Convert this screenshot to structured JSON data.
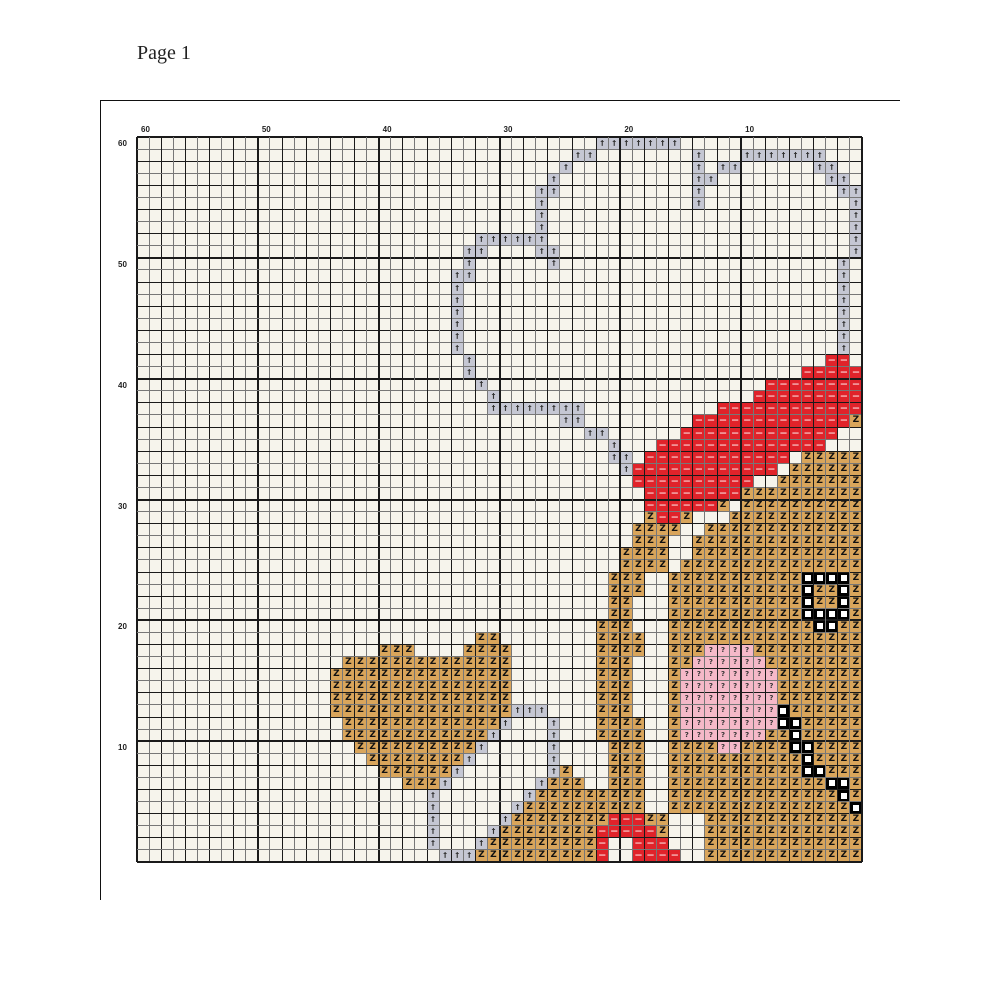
{
  "page": {
    "title": "Page 1"
  },
  "axes": {
    "top_labels": [
      "60",
      "50",
      "40",
      "30",
      "20",
      "10"
    ],
    "left_labels": [
      "60",
      "50",
      "40",
      "30",
      "20",
      "10"
    ]
  },
  "symbols": {
    "g": {
      "color": "#c5c7d3",
      "glyph": "†",
      "glyph_color": "#333333"
    },
    "r": {
      "color": "#e0232a",
      "glyph": "—",
      "glyph_color": "#ffffff"
    },
    "z": {
      "color": "#d9a55b",
      "glyph": "Z",
      "glyph_color": "#111111"
    },
    "p": {
      "color": "#f5b9c8",
      "glyph": "?",
      "glyph_color": "#333333"
    },
    "w": {
      "color": "#ffffff",
      "glyph": "",
      "glyph_color": "#000000"
    }
  },
  "pattern_rows": [
    [
      [
        "g",
        38,
        44
      ]
    ],
    [
      [
        "g",
        36,
        37
      ],
      [
        "g",
        46,
        46
      ],
      [
        "g",
        50,
        56
      ]
    ],
    [
      [
        "g",
        35,
        35
      ],
      [
        "g",
        46,
        46
      ],
      [
        "g",
        48,
        49
      ],
      [
        "g",
        56,
        57
      ]
    ],
    [
      [
        "g",
        34,
        34
      ],
      [
        "g",
        46,
        47
      ],
      [
        "g",
        57,
        58
      ]
    ],
    [
      [
        "g",
        33,
        34
      ],
      [
        "g",
        46,
        46
      ],
      [
        "g",
        58,
        59
      ]
    ],
    [
      [
        "g",
        33,
        33
      ],
      [
        "g",
        46,
        46
      ],
      [
        "g",
        59,
        59
      ]
    ],
    [
      [
        "g",
        33,
        33
      ],
      [
        "g",
        59,
        59
      ]
    ],
    [
      [
        "g",
        33,
        33
      ],
      [
        "g",
        59,
        59
      ]
    ],
    [
      [
        "g",
        28,
        33
      ],
      [
        "g",
        59,
        59
      ]
    ],
    [
      [
        "g",
        27,
        28
      ],
      [
        "g",
        33,
        34
      ],
      [
        "g",
        59,
        59
      ]
    ],
    [
      [
        "g",
        27,
        27
      ],
      [
        "g",
        34,
        34
      ],
      [
        "g",
        58,
        58
      ]
    ],
    [
      [
        "g",
        26,
        27
      ],
      [
        "g",
        58,
        58
      ]
    ],
    [
      [
        "g",
        26,
        26
      ],
      [
        "g",
        58,
        58
      ]
    ],
    [
      [
        "g",
        26,
        26
      ],
      [
        "g",
        58,
        58
      ]
    ],
    [
      [
        "g",
        26,
        26
      ],
      [
        "g",
        58,
        58
      ]
    ],
    [
      [
        "g",
        26,
        26
      ],
      [
        "g",
        58,
        58
      ]
    ],
    [
      [
        "g",
        26,
        26
      ],
      [
        "g",
        58,
        58
      ]
    ],
    [
      [
        "g",
        26,
        26
      ],
      [
        "g",
        58,
        58
      ]
    ],
    [
      [
        "g",
        27,
        27
      ],
      [
        "r",
        57,
        58
      ]
    ],
    [
      [
        "g",
        27,
        27
      ],
      [
        "r",
        55,
        59
      ]
    ],
    [
      [
        "g",
        28,
        28
      ],
      [
        "r",
        52,
        59
      ]
    ],
    [
      [
        "g",
        29,
        29
      ],
      [
        "r",
        51,
        59
      ]
    ],
    [
      [
        "g",
        29,
        36
      ],
      [
        "r",
        48,
        59
      ]
    ],
    [
      [
        "g",
        35,
        36
      ],
      [
        "r",
        46,
        58
      ],
      [
        "z",
        59,
        59
      ]
    ],
    [
      [
        "g",
        37,
        38
      ],
      [
        "r",
        45,
        57
      ]
    ],
    [
      [
        "g",
        39,
        39
      ],
      [
        "r",
        43,
        56
      ]
    ],
    [
      [
        "g",
        39,
        40
      ],
      [
        "r",
        42,
        53
      ],
      [
        "z",
        55,
        59
      ]
    ],
    [
      [
        "g",
        40,
        40
      ],
      [
        "r",
        41,
        52
      ],
      [
        "z",
        54,
        59
      ]
    ],
    [
      [
        "r",
        41,
        50
      ],
      [
        "z",
        53,
        59
      ]
    ],
    [
      [
        "r",
        42,
        49
      ],
      [
        "z",
        50,
        59
      ]
    ],
    [
      [
        "r",
        42,
        47
      ],
      [
        "z",
        48,
        48
      ],
      [
        "z",
        50,
        59
      ]
    ],
    [
      [
        "z",
        42,
        42
      ],
      [
        "r",
        43,
        44
      ],
      [
        "z",
        45,
        45
      ],
      [
        "z",
        49,
        59
      ]
    ],
    [
      [
        "z",
        41,
        44
      ],
      [
        "z",
        47,
        59
      ]
    ],
    [
      [
        "z",
        41,
        43
      ],
      [
        "z",
        46,
        59
      ]
    ],
    [
      [
        "z",
        40,
        43
      ],
      [
        "z",
        46,
        59
      ]
    ],
    [
      [
        "z",
        40,
        43
      ],
      [
        "z",
        45,
        59
      ]
    ],
    [
      [
        "z",
        39,
        41
      ],
      [
        "z",
        44,
        54
      ],
      [
        "w",
        55,
        58
      ],
      [
        "z",
        59,
        59
      ]
    ],
    [
      [
        "z",
        39,
        41
      ],
      [
        "z",
        44,
        54
      ],
      [
        "w",
        55,
        55
      ],
      [
        "z",
        56,
        57
      ],
      [
        "w",
        58,
        58
      ],
      [
        "z",
        59,
        59
      ]
    ],
    [
      [
        "z",
        39,
        40
      ],
      [
        "z",
        44,
        54
      ],
      [
        "w",
        55,
        55
      ],
      [
        "z",
        56,
        57
      ],
      [
        "w",
        58,
        58
      ],
      [
        "z",
        59,
        59
      ]
    ],
    [
      [
        "z",
        39,
        40
      ],
      [
        "z",
        44,
        54
      ],
      [
        "w",
        55,
        58
      ],
      [
        "z",
        59,
        59
      ]
    ],
    [
      [
        "z",
        38,
        40
      ],
      [
        "z",
        44,
        55
      ],
      [
        "w",
        56,
        57
      ],
      [
        "z",
        58,
        59
      ]
    ],
    [
      [
        "z",
        28,
        29
      ],
      [
        "z",
        38,
        41
      ],
      [
        "z",
        44,
        59
      ]
    ],
    [
      [
        "z",
        20,
        22
      ],
      [
        "z",
        27,
        30
      ],
      [
        "z",
        38,
        41
      ],
      [
        "z",
        44,
        46
      ],
      [
        "p",
        47,
        50
      ],
      [
        "z",
        51,
        59
      ]
    ],
    [
      [
        "z",
        17,
        30
      ],
      [
        "z",
        38,
        40
      ],
      [
        "z",
        44,
        45
      ],
      [
        "p",
        46,
        51
      ],
      [
        "z",
        52,
        59
      ]
    ],
    [
      [
        "z",
        16,
        30
      ],
      [
        "z",
        38,
        40
      ],
      [
        "z",
        44,
        44
      ],
      [
        "p",
        45,
        52
      ],
      [
        "z",
        53,
        59
      ]
    ],
    [
      [
        "z",
        16,
        30
      ],
      [
        "z",
        38,
        40
      ],
      [
        "z",
        44,
        44
      ],
      [
        "p",
        45,
        52
      ],
      [
        "z",
        53,
        59
      ]
    ],
    [
      [
        "z",
        16,
        30
      ],
      [
        "z",
        38,
        40
      ],
      [
        "z",
        44,
        44
      ],
      [
        "p",
        45,
        52
      ],
      [
        "z",
        53,
        59
      ]
    ],
    [
      [
        "z",
        16,
        30
      ],
      [
        "g",
        31,
        33
      ],
      [
        "z",
        38,
        40
      ],
      [
        "z",
        44,
        44
      ],
      [
        "p",
        45,
        52
      ],
      [
        "w",
        53,
        53
      ],
      [
        "z",
        54,
        59
      ]
    ],
    [
      [
        "z",
        17,
        29
      ],
      [
        "g",
        30,
        30
      ],
      [
        "g",
        34,
        34
      ],
      [
        "z",
        38,
        41
      ],
      [
        "z",
        44,
        44
      ],
      [
        "p",
        45,
        52
      ],
      [
        "w",
        53,
        54
      ],
      [
        "z",
        55,
        59
      ]
    ],
    [
      [
        "z",
        17,
        28
      ],
      [
        "g",
        29,
        29
      ],
      [
        "g",
        34,
        34
      ],
      [
        "z",
        38,
        41
      ],
      [
        "z",
        44,
        44
      ],
      [
        "p",
        45,
        51
      ],
      [
        "z",
        52,
        53
      ],
      [
        "w",
        54,
        54
      ],
      [
        "z",
        55,
        59
      ]
    ],
    [
      [
        "z",
        18,
        27
      ],
      [
        "g",
        28,
        28
      ],
      [
        "g",
        34,
        34
      ],
      [
        "z",
        39,
        41
      ],
      [
        "z",
        44,
        47
      ],
      [
        "p",
        48,
        49
      ],
      [
        "z",
        50,
        53
      ],
      [
        "w",
        54,
        55
      ],
      [
        "z",
        56,
        59
      ]
    ],
    [
      [
        "z",
        19,
        26
      ],
      [
        "g",
        27,
        27
      ],
      [
        "g",
        34,
        34
      ],
      [
        "z",
        39,
        41
      ],
      [
        "z",
        44,
        54
      ],
      [
        "w",
        55,
        55
      ],
      [
        "z",
        56,
        59
      ]
    ],
    [
      [
        "z",
        20,
        25
      ],
      [
        "g",
        26,
        26
      ],
      [
        "g",
        34,
        34
      ],
      [
        "z",
        35,
        35
      ],
      [
        "z",
        39,
        41
      ],
      [
        "z",
        44,
        54
      ],
      [
        "w",
        55,
        56
      ],
      [
        "z",
        57,
        59
      ]
    ],
    [
      [
        "z",
        22,
        24
      ],
      [
        "g",
        25,
        25
      ],
      [
        "g",
        33,
        33
      ],
      [
        "z",
        34,
        36
      ],
      [
        "z",
        39,
        41
      ],
      [
        "z",
        44,
        56
      ],
      [
        "w",
        57,
        58
      ],
      [
        "z",
        59,
        59
      ]
    ],
    [
      [
        "g",
        24,
        24
      ],
      [
        "g",
        32,
        32
      ],
      [
        "z",
        33,
        41
      ],
      [
        "z",
        44,
        57
      ],
      [
        "w",
        58,
        58
      ],
      [
        "z",
        59,
        59
      ]
    ],
    [
      [
        "g",
        24,
        24
      ],
      [
        "g",
        31,
        31
      ],
      [
        "z",
        32,
        41
      ],
      [
        "z",
        44,
        58
      ],
      [
        "w",
        59,
        59
      ]
    ],
    [
      [
        "g",
        24,
        24
      ],
      [
        "g",
        30,
        30
      ],
      [
        "z",
        31,
        38
      ],
      [
        "r",
        39,
        41
      ],
      [
        "z",
        42,
        43
      ],
      [
        "z",
        47,
        59
      ]
    ],
    [
      [
        "g",
        24,
        24
      ],
      [
        "g",
        29,
        29
      ],
      [
        "z",
        30,
        37
      ],
      [
        "r",
        38,
        42
      ],
      [
        "z",
        43,
        43
      ],
      [
        "z",
        47,
        59
      ]
    ],
    [
      [
        "g",
        24,
        24
      ],
      [
        "g",
        28,
        28
      ],
      [
        "z",
        29,
        37
      ],
      [
        "r",
        38,
        38
      ],
      [
        "r",
        41,
        43
      ],
      [
        "z",
        47,
        59
      ]
    ],
    [
      [
        "g",
        25,
        27
      ],
      [
        "z",
        28,
        37
      ],
      [
        "r",
        38,
        38
      ],
      [
        "r",
        41,
        44
      ],
      [
        "z",
        47,
        59
      ]
    ]
  ]
}
